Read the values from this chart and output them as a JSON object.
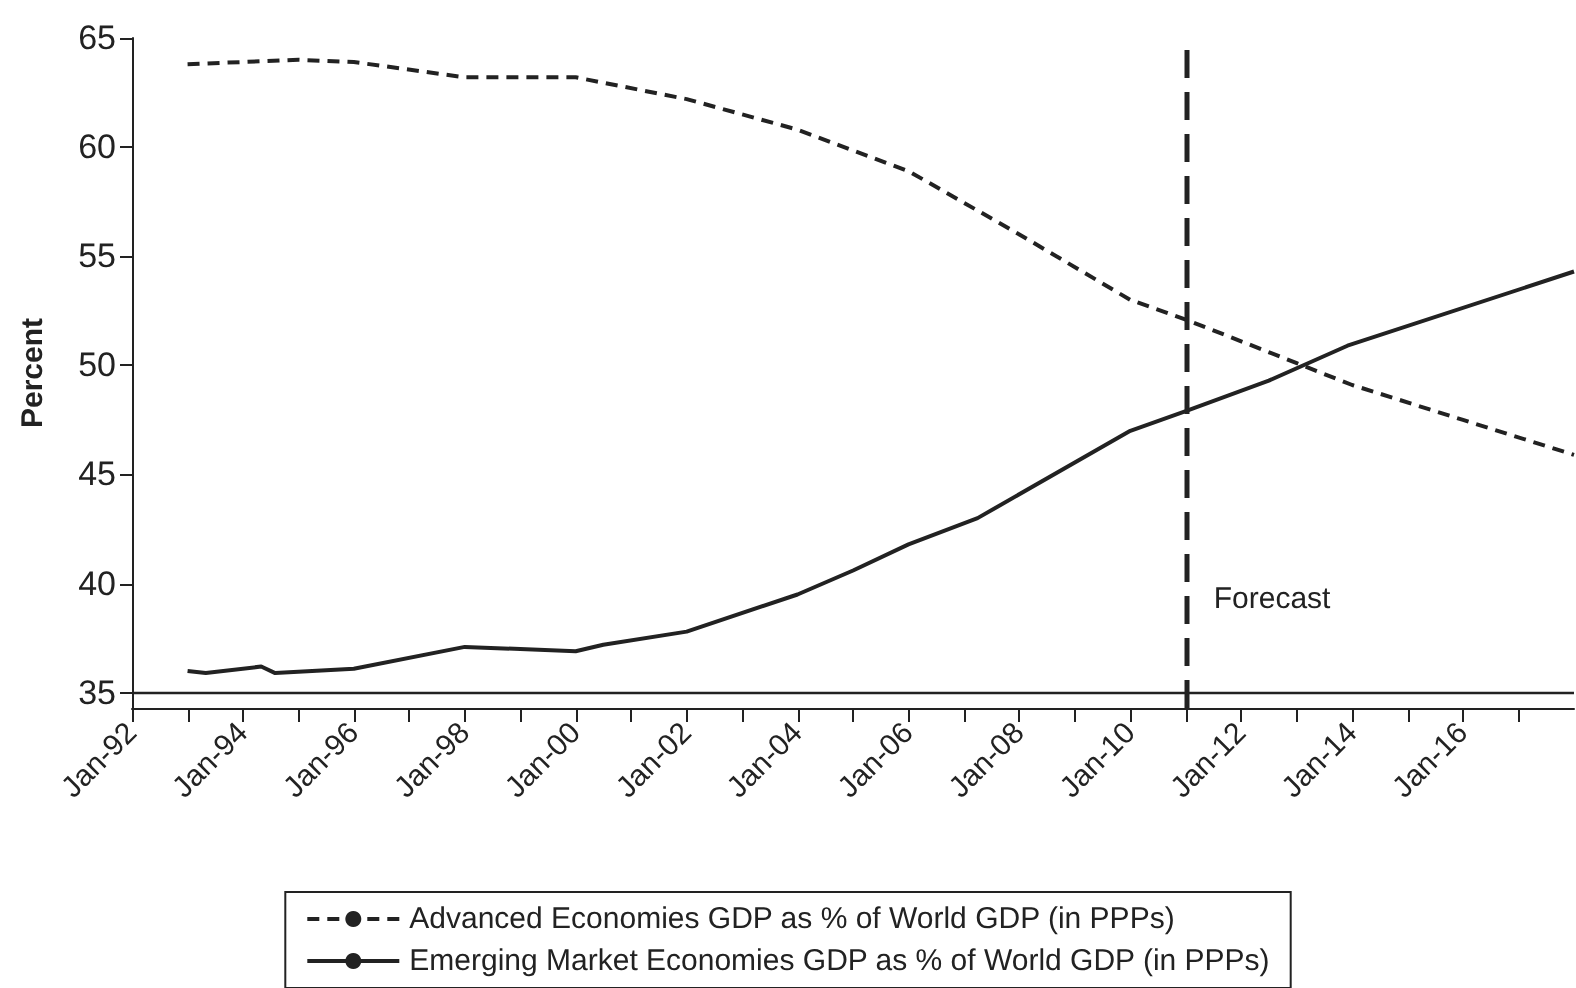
{
  "chart_data": {
    "type": "line",
    "ylabel": "Percent",
    "xlim": [
      "1992-01",
      "2018-01"
    ],
    "ylim": [
      34.3,
      65
    ],
    "yticks": [
      35,
      40,
      45,
      50,
      55,
      60,
      65
    ],
    "xticks": [
      {
        "value": "1992-01",
        "label": "Jan-92"
      },
      {
        "value": "1993-01",
        "label": null
      },
      {
        "value": "1994-01",
        "label": "Jan-94"
      },
      {
        "value": "1995-01",
        "label": null
      },
      {
        "value": "1996-01",
        "label": "Jan-96"
      },
      {
        "value": "1997-01",
        "label": null
      },
      {
        "value": "1998-01",
        "label": "Jan-98"
      },
      {
        "value": "1999-01",
        "label": null
      },
      {
        "value": "2000-01",
        "label": "Jan-00"
      },
      {
        "value": "2001-01",
        "label": null
      },
      {
        "value": "2002-01",
        "label": "Jan-02"
      },
      {
        "value": "2003-01",
        "label": null
      },
      {
        "value": "2004-01",
        "label": "Jan-04"
      },
      {
        "value": "2005-01",
        "label": null
      },
      {
        "value": "2006-01",
        "label": "Jan-06"
      },
      {
        "value": "2007-01",
        "label": null
      },
      {
        "value": "2008-01",
        "label": "Jan-08"
      },
      {
        "value": "2009-01",
        "label": null
      },
      {
        "value": "2010-01",
        "label": "Jan-10"
      },
      {
        "value": "2011-01",
        "label": null
      },
      {
        "value": "2012-01",
        "label": "Jan-12"
      },
      {
        "value": "2013-01",
        "label": null
      },
      {
        "value": "2014-01",
        "label": "Jan-14"
      },
      {
        "value": "2015-01",
        "label": null
      },
      {
        "value": "2016-01",
        "label": "Jan-16"
      },
      {
        "value": "2017-01",
        "label": null
      }
    ],
    "series": [
      {
        "name": "Advanced Economies GDP as % of World GDP (in PPPs)",
        "color": "#222222",
        "line_style": "dashed",
        "x": [
          "1993-01",
          "1995-01",
          "1996-01",
          "1998-01",
          "2000-01",
          "2002-01",
          "2004-01",
          "2006-01",
          "2008-01",
          "2010-01",
          "2011-01",
          "2013-01",
          "2014-01",
          "2016-01",
          "2018-01"
        ],
        "values": [
          63.8,
          64.0,
          63.9,
          63.2,
          63.2,
          62.2,
          60.8,
          58.9,
          56.0,
          53.0,
          52.1,
          50.1,
          49.1,
          47.5,
          45.9
        ]
      },
      {
        "name": "Emerging Market Economies GDP as % of World GDP (in PPPs)",
        "color": "#222222",
        "line_style": "solid",
        "x": [
          "1993-01",
          "1993-05",
          "1994-05",
          "1994-08",
          "1996-01",
          "1998-01",
          "2000-01",
          "2000-07",
          "2002-01",
          "2004-01",
          "2005-01",
          "2006-01",
          "2007-04",
          "2010-01",
          "2011-01",
          "2012-07",
          "2013-12",
          "2018-01"
        ],
        "values": [
          36.0,
          35.9,
          36.2,
          35.9,
          36.1,
          37.1,
          36.9,
          37.2,
          37.8,
          39.5,
          40.6,
          41.8,
          43.0,
          47.0,
          47.9,
          49.3,
          50.9,
          54.3
        ]
      }
    ],
    "ref_lines": [
      {
        "axis": "y",
        "value": 35,
        "line_style": "solid",
        "color": "#222222"
      },
      {
        "axis": "x",
        "value": "2011-01",
        "label": "Forecast",
        "line_style": "dashed",
        "color": "#222222"
      }
    ],
    "grid": false,
    "legend": "bottom",
    "marker": "none"
  }
}
